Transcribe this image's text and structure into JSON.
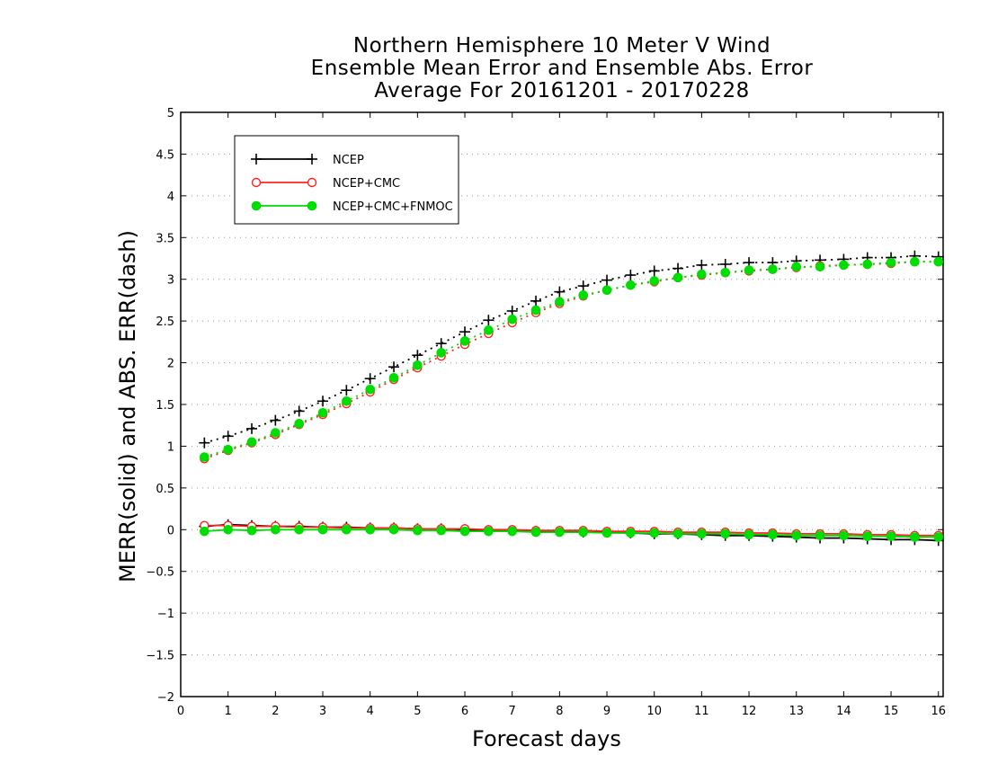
{
  "chart_data": {
    "type": "line",
    "title": [
      "Northern Hemisphere 10 Meter V Wind",
      "Ensemble Mean Error and Ensemble Abs. Error",
      "Average For 20161201 - 20170228"
    ],
    "xlabel": "Forecast days",
    "ylabel": "MERR(solid) and ABS. ERR(dash)",
    "xlim": [
      0,
      16.1
    ],
    "ylim": [
      -2,
      5
    ],
    "x_ticks": [
      0,
      1,
      2,
      3,
      4,
      5,
      6,
      7,
      8,
      9,
      10,
      11,
      12,
      13,
      14,
      15,
      16
    ],
    "y_ticks": [
      -2,
      -1.5,
      -1,
      -0.5,
      0,
      0.5,
      1,
      1.5,
      2,
      2.5,
      3,
      3.5,
      4,
      4.5,
      5
    ],
    "grid": "horizontal dotted",
    "legend_position": "top-left",
    "x": [
      0.5,
      1,
      1.5,
      2,
      2.5,
      3,
      3.5,
      4,
      4.5,
      5,
      5.5,
      6,
      6.5,
      7,
      7.5,
      8,
      8.5,
      9,
      9.5,
      10,
      10.5,
      11,
      11.5,
      12,
      12.5,
      13,
      13.5,
      14,
      14.5,
      15,
      15.5,
      16
    ],
    "series": [
      {
        "name": "NCEP",
        "color": "#000000",
        "marker": "plus",
        "abs_err": [
          1.04,
          1.12,
          1.21,
          1.31,
          1.42,
          1.54,
          1.67,
          1.81,
          1.95,
          2.09,
          2.23,
          2.37,
          2.51,
          2.62,
          2.74,
          2.85,
          2.92,
          2.99,
          3.05,
          3.1,
          3.13,
          3.17,
          3.18,
          3.2,
          3.2,
          3.22,
          3.23,
          3.24,
          3.26,
          3.26,
          3.28,
          3.27
        ],
        "mean_err": [
          0.04,
          0.06,
          0.05,
          0.04,
          0.04,
          0.03,
          0.03,
          0.02,
          0.02,
          0.01,
          0.01,
          0.0,
          -0.01,
          -0.01,
          -0.02,
          -0.02,
          -0.03,
          -0.03,
          -0.04,
          -0.05,
          -0.05,
          -0.06,
          -0.07,
          -0.07,
          -0.08,
          -0.09,
          -0.1,
          -0.1,
          -0.11,
          -0.12,
          -0.12,
          -0.13
        ]
      },
      {
        "name": "NCEP+CMC",
        "color": "#ff2222",
        "marker": "open-circle",
        "abs_err": [
          0.85,
          0.95,
          1.04,
          1.14,
          1.26,
          1.38,
          1.51,
          1.65,
          1.8,
          1.94,
          2.08,
          2.22,
          2.35,
          2.48,
          2.6,
          2.71,
          2.8,
          2.87,
          2.93,
          2.97,
          3.02,
          3.05,
          3.08,
          3.1,
          3.12,
          3.14,
          3.16,
          3.17,
          3.18,
          3.19,
          3.21,
          3.21
        ],
        "mean_err": [
          0.05,
          0.05,
          0.04,
          0.04,
          0.03,
          0.03,
          0.02,
          0.02,
          0.02,
          0.01,
          0.01,
          0.01,
          0.0,
          0.0,
          -0.01,
          -0.01,
          -0.01,
          -0.02,
          -0.02,
          -0.02,
          -0.03,
          -0.03,
          -0.03,
          -0.04,
          -0.04,
          -0.05,
          -0.05,
          -0.05,
          -0.06,
          -0.06,
          -0.07,
          -0.07
        ]
      },
      {
        "name": "NCEP+CMC+FNMOC",
        "color": "#00dd00",
        "marker": "filled-circle",
        "abs_err": [
          0.87,
          0.96,
          1.05,
          1.16,
          1.27,
          1.4,
          1.54,
          1.68,
          1.82,
          1.97,
          2.12,
          2.26,
          2.39,
          2.52,
          2.63,
          2.73,
          2.81,
          2.87,
          2.93,
          2.98,
          3.02,
          3.06,
          3.08,
          3.11,
          3.12,
          3.15,
          3.15,
          3.17,
          3.18,
          3.2,
          3.21,
          3.21
        ],
        "mean_err": [
          -0.02,
          0.0,
          -0.01,
          0.0,
          0.0,
          0.0,
          0.0,
          0.0,
          0.0,
          -0.01,
          -0.01,
          -0.02,
          -0.02,
          -0.02,
          -0.03,
          -0.03,
          -0.03,
          -0.04,
          -0.04,
          -0.04,
          -0.05,
          -0.05,
          -0.05,
          -0.06,
          -0.06,
          -0.07,
          -0.07,
          -0.07,
          -0.08,
          -0.08,
          -0.09,
          -0.09
        ]
      }
    ]
  }
}
